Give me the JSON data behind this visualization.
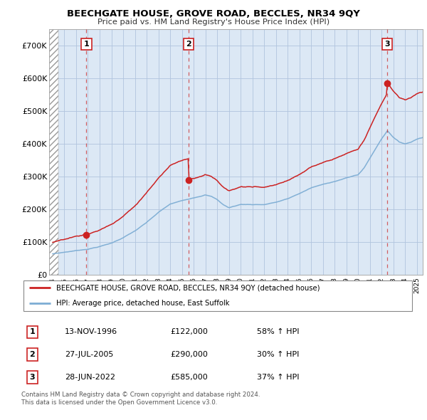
{
  "title": "BEECHGATE HOUSE, GROVE ROAD, BECCLES, NR34 9QY",
  "subtitle": "Price paid vs. HM Land Registry's House Price Index (HPI)",
  "ylim": [
    0,
    750000
  ],
  "yticks": [
    0,
    100000,
    200000,
    300000,
    400000,
    500000,
    600000,
    700000
  ],
  "ytick_labels": [
    "£0",
    "£100K",
    "£200K",
    "£300K",
    "£400K",
    "£500K",
    "£600K",
    "£700K"
  ],
  "xlim_start": 1993.7,
  "xlim_end": 2025.5,
  "sale_color": "#cc2222",
  "hpi_color": "#7dadd4",
  "chart_bg": "#dce8f5",
  "sale_label": "BEECHGATE HOUSE, GROVE ROAD, BECCLES, NR34 9QY (detached house)",
  "hpi_label": "HPI: Average price, detached house, East Suffolk",
  "transactions": [
    {
      "num": 1,
      "date_x": 1996.87,
      "price": 122000
    },
    {
      "num": 2,
      "date_x": 2005.57,
      "price": 290000
    },
    {
      "num": 3,
      "date_x": 2022.49,
      "price": 585000
    }
  ],
  "footer_line1": "Contains HM Land Registry data © Crown copyright and database right 2024.",
  "footer_line2": "This data is licensed under the Open Government Licence v3.0.",
  "hatch_end": 1994.5,
  "grid_color": "#b0c4de",
  "table_rows": [
    {
      "num": "1",
      "date": "13-NOV-1996",
      "price": "£122,000",
      "hpi": "58% ↑ HPI"
    },
    {
      "num": "2",
      "date": "27-JUL-2005",
      "price": "£290,000",
      "hpi": "30% ↑ HPI"
    },
    {
      "num": "3",
      "date": "28-JUN-2022",
      "price": "£585,000",
      "hpi": "37% ↑ HPI"
    }
  ]
}
